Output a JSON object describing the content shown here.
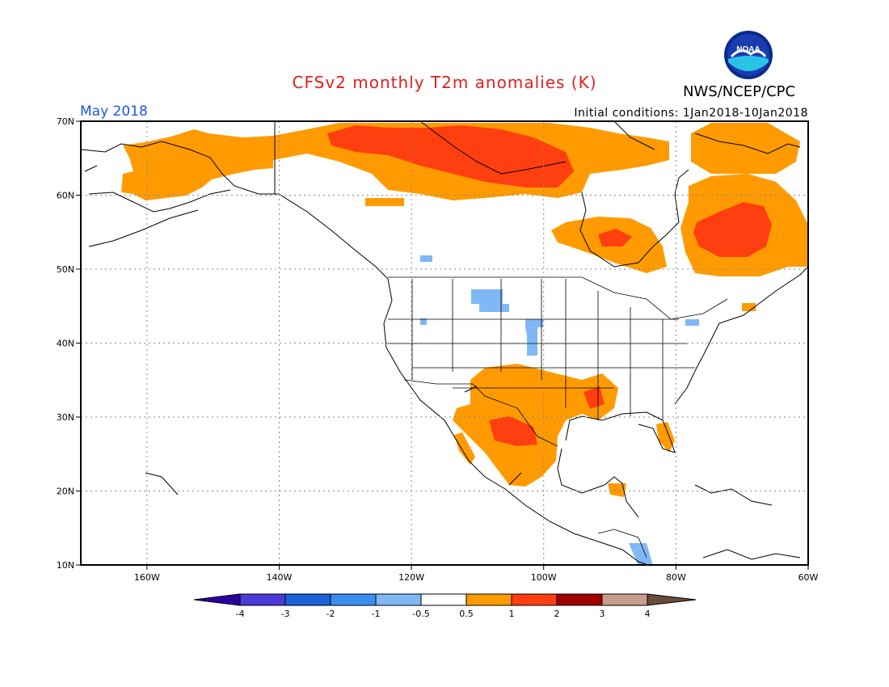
{
  "header": {
    "title": "CFSv2 monthly T2m anomalies (K)",
    "agency": "NWS/NCEP/CPC",
    "logo_text": "NOAA",
    "month": "May 2018",
    "initial_conditions": "Initial conditions: 1Jan2018-10Jan2018"
  },
  "map": {
    "lon_range": [
      -170,
      -60
    ],
    "lat_range": [
      10,
      70
    ],
    "gridlines": "dotted",
    "lat_labels": [
      "70N",
      "60N",
      "50N",
      "40N",
      "30N",
      "20N",
      "10N"
    ],
    "lon_labels": [
      "160W",
      "140W",
      "120W",
      "100W",
      "80W",
      "60W"
    ],
    "anomaly_regions": [
      {
        "name": "Alaska interior warm",
        "color": "#ff9b00",
        "level": "0.5-1"
      },
      {
        "name": "NW Canada / Arctic warm",
        "color": "#ff3f0f",
        "level": "1-2"
      },
      {
        "name": "Quebec / Labrador warm",
        "color": "#ff3f0f",
        "level": "1-2"
      },
      {
        "name": "Hudson Bay south warm",
        "color": "#ff9b00",
        "level": "0.5-1"
      },
      {
        "name": "Southern Plains / Mexico warm",
        "color": "#ff9b00",
        "level": "0.5-1"
      },
      {
        "name": "Montana / Wyoming cool",
        "color": "#7fb8f5",
        "level": "-1 to -0.5"
      }
    ]
  },
  "colorbar": {
    "labels": [
      "-4",
      "-3",
      "-2",
      "-1",
      "-0.5",
      "0.5",
      "1",
      "2",
      "3",
      "4"
    ],
    "colors": [
      "#2a00a0",
      "#4c3bd6",
      "#1a62d8",
      "#3a8ef0",
      "#7fb8f5",
      "#ffffff",
      "#ff9b00",
      "#ff3f0f",
      "#a00000",
      "#c89c8c",
      "#6b4a3c"
    ]
  }
}
